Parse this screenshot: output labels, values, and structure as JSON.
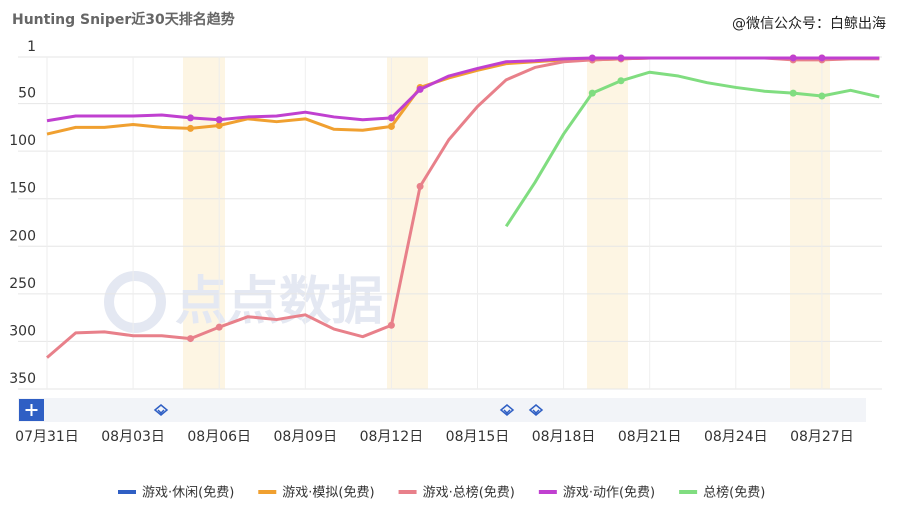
{
  "chart_data": {
    "type": "line",
    "title": "Hunting Sniper近30天排名趋势",
    "source": "@微信公众号：白鲸出海",
    "watermark": "点点数据",
    "categories": [
      "07月31日",
      null,
      null,
      "08月03日",
      null,
      null,
      "08月06日",
      null,
      null,
      "08月09日",
      null,
      null,
      "08月12日",
      null,
      null,
      "08月15日",
      null,
      null,
      "08月18日",
      null,
      null,
      "08月21日",
      null,
      null,
      "08月24日",
      null,
      null,
      "08月27日",
      null,
      null
    ],
    "ylim": [
      1,
      350
    ],
    "yticks": [
      1,
      50,
      100,
      150,
      200,
      250,
      300,
      350
    ],
    "inverted": true,
    "grid": true,
    "legend": "bottom",
    "series": [
      {
        "name": "游戏·休闲(免费)",
        "color": "#2f5fc4",
        "values": [
          null,
          null,
          null,
          null,
          null,
          null,
          null,
          null,
          null,
          null,
          null,
          null,
          null,
          null,
          null,
          null,
          null,
          null,
          null,
          null,
          null,
          null,
          null,
          null,
          null,
          null,
          null,
          null,
          null,
          null
        ]
      },
      {
        "name": "游戏·模拟(免费)",
        "color": "#f0a030",
        "values": [
          82,
          75,
          75,
          72,
          75,
          76,
          73,
          66,
          69,
          66,
          77,
          78,
          74,
          33,
          23,
          15,
          8,
          6,
          4,
          4,
          3,
          2,
          2,
          2,
          2,
          2,
          2,
          2,
          2,
          2
        ]
      },
      {
        "name": "游戏·总榜(免费)",
        "color": "#e8808a",
        "values": [
          317,
          291,
          290,
          294,
          294,
          297,
          285,
          274,
          277,
          272,
          287,
          295,
          283,
          137,
          88,
          53,
          25,
          12,
          6,
          4,
          3,
          2,
          2,
          2,
          2,
          2,
          4,
          4,
          3,
          3
        ]
      },
      {
        "name": "游戏·动作(免费)",
        "color": "#c040d0",
        "values": [
          68,
          63,
          63,
          63,
          62,
          65,
          67,
          64,
          63,
          59,
          64,
          67,
          65,
          35,
          21,
          13,
          6,
          5,
          3,
          2,
          2,
          2,
          2,
          2,
          2,
          2,
          2,
          2,
          2,
          2
        ]
      },
      {
        "name": "总榜(免费)",
        "color": "#80dd80",
        "values": [
          null,
          null,
          null,
          null,
          null,
          null,
          null,
          null,
          null,
          null,
          null,
          null,
          null,
          null,
          null,
          null,
          179,
          133,
          82,
          39,
          26,
          17,
          21,
          28,
          33,
          37,
          39,
          42,
          36,
          43
        ]
      }
    ]
  }
}
